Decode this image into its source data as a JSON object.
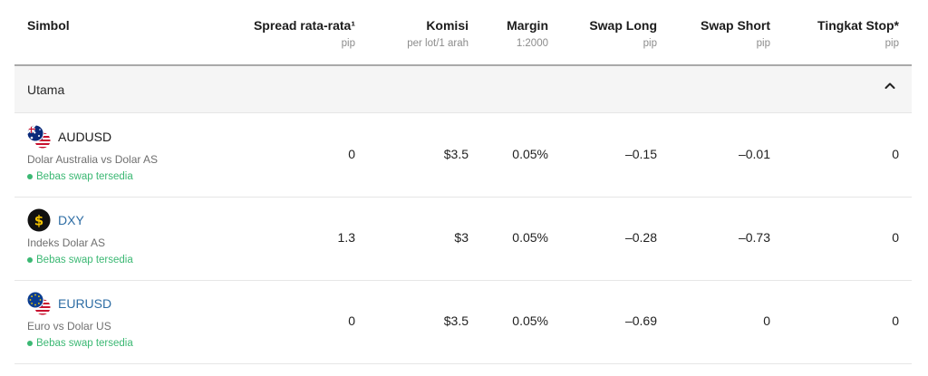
{
  "header": {
    "columns": [
      {
        "title": "Simbol",
        "sub": ""
      },
      {
        "title": "Spread rata-rata¹",
        "sub": "pip"
      },
      {
        "title": "Komisi",
        "sub": "per lot/1 arah"
      },
      {
        "title": "Margin",
        "sub": "1:2000"
      },
      {
        "title": "Swap Long",
        "sub": "pip"
      },
      {
        "title": "Swap Short",
        "sub": "pip"
      },
      {
        "title": "Tingkat Stop*",
        "sub": "pip"
      }
    ]
  },
  "group": {
    "label": "Utama",
    "icon": "chevron-up-icon"
  },
  "rows": [
    {
      "symbol": "AUDUSD",
      "description": "Dolar Australia vs Dolar AS",
      "swap_free": "Bebas swap tersedia",
      "flag_icon": "aud-usd-flag-icon",
      "spread": "0",
      "commission": "$3.5",
      "margin": "0.05%",
      "swap_long": "–0.15",
      "swap_short": "–0.01",
      "stop_level": "0"
    },
    {
      "symbol": "DXY",
      "description": "Indeks Dolar AS",
      "swap_free": "Bebas swap tersedia",
      "flag_icon": "dollar-index-icon",
      "spread": "1.3",
      "commission": "$3",
      "margin": "0.05%",
      "swap_long": "–0.28",
      "swap_short": "–0.73",
      "stop_level": "0"
    },
    {
      "symbol": "EURUSD",
      "description": "Euro vs Dolar US",
      "swap_free": "Bebas swap tersedia",
      "flag_icon": "eur-usd-flag-icon",
      "spread": "0",
      "commission": "$3.5",
      "margin": "0.05%",
      "swap_long": "–0.69",
      "swap_short": "0",
      "stop_level": "0"
    }
  ],
  "colors": {
    "link": "#2e6da4",
    "swap_free": "#3bb873",
    "muted": "#8c8c8c"
  }
}
